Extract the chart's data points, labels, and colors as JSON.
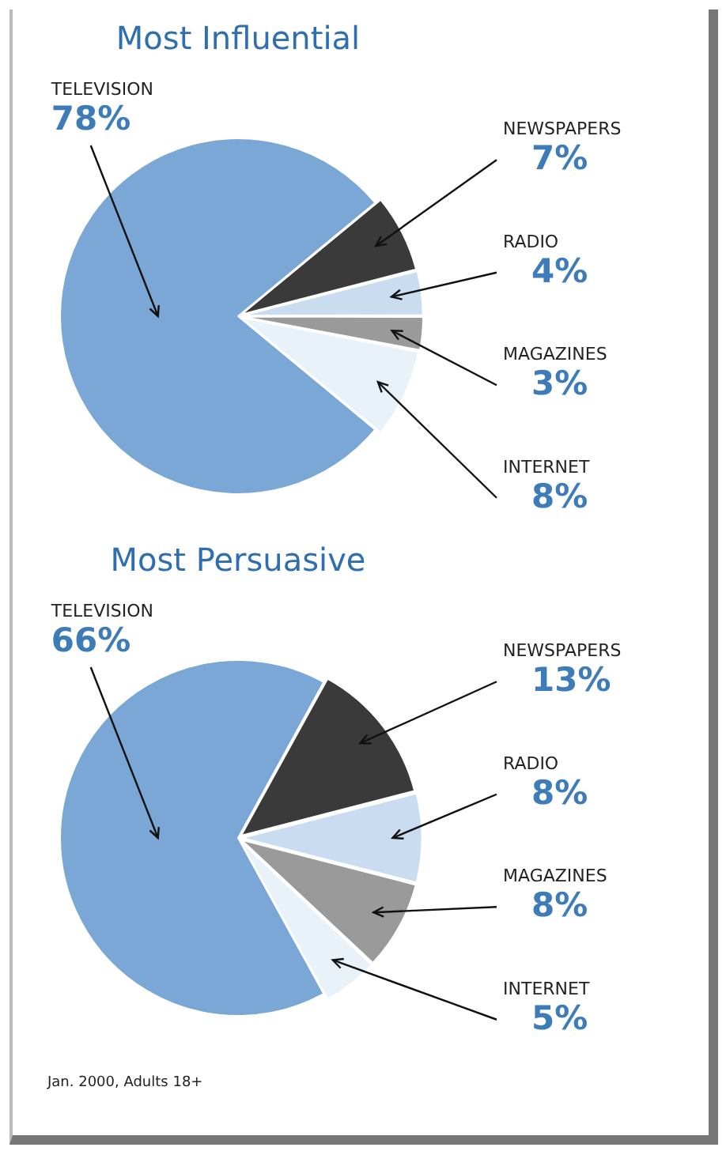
{
  "chart_data": [
    {
      "type": "pie",
      "title": "Most Influential",
      "categories": [
        "TELEVISION",
        "NEWSPAPERS",
        "RADIO",
        "MAGAZINES",
        "INTERNET"
      ],
      "values": [
        78,
        7,
        4,
        3,
        8
      ],
      "colors": [
        "#7aa7d6",
        "#3a3a3a",
        "#c9dcf0",
        "#9a9a9a",
        "#e9f1f9"
      ],
      "value_labels": [
        "78%",
        "7%",
        "4%",
        "3%",
        "8%"
      ]
    },
    {
      "type": "pie",
      "title": "Most Persuasive",
      "categories": [
        "TELEVISION",
        "NEWSPAPERS",
        "RADIO",
        "MAGAZINES",
        "INTERNET"
      ],
      "values": [
        66,
        13,
        8,
        8,
        5
      ],
      "colors": [
        "#7aa7d6",
        "#3a3a3a",
        "#c9dcf0",
        "#9a9a9a",
        "#e9f1f9"
      ],
      "value_labels": [
        "66%",
        "13%",
        "8%",
        "8%",
        "5%"
      ],
      "annotations": [
        "Jan. 2000, Adults 18+"
      ]
    }
  ]
}
